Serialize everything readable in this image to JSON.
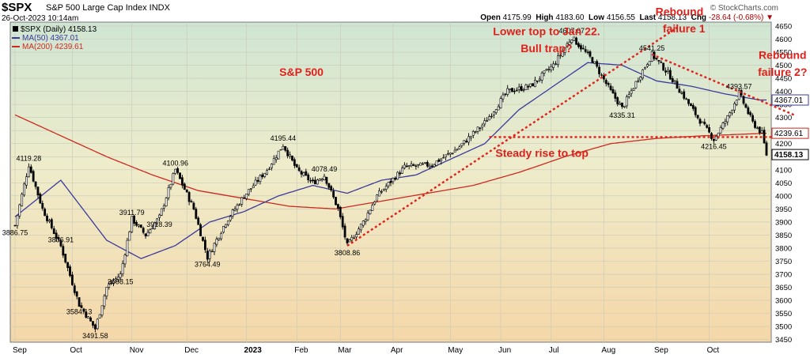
{
  "header": {
    "symbol": "$SPX",
    "description": "S&P 500 Large Cap Index  INDX",
    "date": "26-Oct-2023 10:14am",
    "brand": "© StockCharts.com",
    "open_label": "Open",
    "open": "4175.99",
    "high_label": "High",
    "high": "4183.60",
    "low_label": "Low",
    "low": "4156.55",
    "last_label": "Last",
    "last": "4158.13",
    "chg_label": "Chg",
    "chg": "-28.64 (-0.68%)"
  },
  "legend": {
    "price": "$SPX (Daily) 4158.13",
    "ma50": "MA(50) 4367.01",
    "ma200": "MA(200) 4239.61"
  },
  "chart_data": {
    "type": "candlestick",
    "title": "S&P 500",
    "ylim": [
      3440,
      4665
    ],
    "yticks": [
      3450,
      3500,
      3550,
      3600,
      3650,
      3700,
      3750,
      3800,
      3850,
      3900,
      3950,
      4000,
      4050,
      4100,
      4150,
      4200,
      4250,
      4300,
      4350,
      4400,
      4450,
      4500,
      4550,
      4600,
      4650
    ],
    "xticks": [
      "Sep",
      "Oct",
      "Nov",
      "Dec",
      "2023",
      "Feb",
      "Mar",
      "Apr",
      "May",
      "Jun",
      "Jul",
      "Aug",
      "Sep",
      "Oct"
    ],
    "price_anchors": [
      [
        0,
        3886.75
      ],
      [
        6,
        4119.28
      ],
      [
        12,
        3950
      ],
      [
        20,
        3806.91
      ],
      [
        28,
        3584.13
      ],
      [
        35,
        3491.58
      ],
      [
        40,
        3650
      ],
      [
        46,
        3698.15
      ],
      [
        51,
        3911.79
      ],
      [
        57,
        3850
      ],
      [
        63,
        3918.39
      ],
      [
        70,
        4100.96
      ],
      [
        78,
        3950
      ],
      [
        84,
        3764.49
      ],
      [
        92,
        3900
      ],
      [
        100,
        4000
      ],
      [
        110,
        4100
      ],
      [
        117,
        4195.44
      ],
      [
        123,
        4100
      ],
      [
        130,
        4050
      ],
      [
        135,
        4078.49
      ],
      [
        141,
        3950
      ],
      [
        145,
        3808.86
      ],
      [
        152,
        3900
      ],
      [
        158,
        4000
      ],
      [
        170,
        4110
      ],
      [
        182,
        4120
      ],
      [
        193,
        4180
      ],
      [
        205,
        4280
      ],
      [
        215,
        4400
      ],
      [
        225,
        4420
      ],
      [
        235,
        4500
      ],
      [
        243,
        4607.07
      ],
      [
        252,
        4520
      ],
      [
        260,
        4400
      ],
      [
        265,
        4335.31
      ],
      [
        272,
        4450
      ],
      [
        278,
        4541.25
      ],
      [
        285,
        4470
      ],
      [
        292,
        4380
      ],
      [
        298,
        4300
      ],
      [
        305,
        4216.45
      ],
      [
        311,
        4300
      ],
      [
        316,
        4393.57
      ],
      [
        322,
        4280
      ],
      [
        326,
        4239
      ],
      [
        328,
        4158.13
      ]
    ],
    "ma50_anchors": [
      [
        0,
        3920
      ],
      [
        20,
        4060
      ],
      [
        40,
        3830
      ],
      [
        55,
        3760
      ],
      [
        70,
        3810
      ],
      [
        85,
        3900
      ],
      [
        100,
        3940
      ],
      [
        115,
        4000
      ],
      [
        130,
        4040
      ],
      [
        145,
        4010
      ],
      [
        160,
        4060
      ],
      [
        175,
        4080
      ],
      [
        190,
        4140
      ],
      [
        205,
        4200
      ],
      [
        220,
        4330
      ],
      [
        235,
        4420
      ],
      [
        250,
        4510
      ],
      [
        265,
        4500
      ],
      [
        280,
        4440
      ],
      [
        295,
        4420
      ],
      [
        310,
        4390
      ],
      [
        325,
        4367.01
      ]
    ],
    "ma200_anchors": [
      [
        0,
        4310
      ],
      [
        20,
        4230
      ],
      [
        40,
        4150
      ],
      [
        60,
        4080
      ],
      [
        80,
        4020
      ],
      [
        100,
        3990
      ],
      [
        120,
        3960
      ],
      [
        140,
        3950
      ],
      [
        160,
        3980
      ],
      [
        180,
        4010
      ],
      [
        200,
        4040
      ],
      [
        220,
        4090
      ],
      [
        240,
        4150
      ],
      [
        260,
        4200
      ],
      [
        280,
        4220
      ],
      [
        300,
        4230
      ],
      [
        328,
        4239.61
      ]
    ],
    "value_labels": [
      {
        "text": "4119.28",
        "at": [
          6,
          4119.28
        ],
        "pos": "above"
      },
      {
        "text": "3886.75",
        "at": [
          0,
          3886.75
        ],
        "pos": "below"
      },
      {
        "text": "3806.91",
        "at": [
          20,
          3806.91
        ],
        "pos": "above"
      },
      {
        "text": "3584.13",
        "at": [
          28,
          3584.13
        ],
        "pos": "below"
      },
      {
        "text": "3491.58",
        "at": [
          35,
          3491.58
        ],
        "pos": "below"
      },
      {
        "text": "3911.79",
        "at": [
          51,
          3911.79
        ],
        "pos": "above"
      },
      {
        "text": "3698.15",
        "at": [
          46,
          3698.15
        ],
        "pos": "below"
      },
      {
        "text": "4100.96",
        "at": [
          70,
          4100.96
        ],
        "pos": "above"
      },
      {
        "text": "3918.39",
        "at": [
          63,
          3918.39
        ],
        "pos": "below"
      },
      {
        "text": "3764.49",
        "at": [
          84,
          3764.49
        ],
        "pos": "below"
      },
      {
        "text": "4195.44",
        "at": [
          117,
          4195.44
        ],
        "pos": "above"
      },
      {
        "text": "4078.49",
        "at": [
          135,
          4078.49
        ],
        "pos": "above"
      },
      {
        "text": "3808.86",
        "at": [
          145,
          3808.86
        ],
        "pos": "below"
      },
      {
        "text": "4607.07",
        "at": [
          243,
          4607.07
        ],
        "pos": "above"
      },
      {
        "text": "4541.25",
        "at": [
          278,
          4541.25
        ],
        "pos": "above"
      },
      {
        "text": "4335.31",
        "at": [
          265,
          4335.31
        ],
        "pos": "below"
      },
      {
        "text": "4393.57",
        "at": [
          316,
          4393.57
        ],
        "pos": "above"
      },
      {
        "text": "4216.45",
        "at": [
          305,
          4216.45
        ],
        "pos": "below"
      }
    ],
    "annotations": [
      {
        "text": "S&P 500",
        "at": [
          125,
          4460
        ]
      },
      {
        "text": "Lower top to Jan 22.",
        "at": [
          232,
          4615
        ]
      },
      {
        "text": "Bull trap?",
        "at": [
          232,
          4550
        ]
      },
      {
        "text": "Rebound",
        "at": [
          290,
          4690
        ]
      },
      {
        "text": "failure 1",
        "at": [
          292,
          4625
        ]
      },
      {
        "text": "Rebound",
        "at": [
          335,
          4525
        ]
      },
      {
        "text": "failure 2?",
        "at": [
          335,
          4460
        ]
      },
      {
        "text": "Steady rise to top",
        "at": [
          230,
          4150
        ]
      }
    ],
    "trendlines": [
      {
        "name": "rise",
        "from": [
          145,
          3808.86
        ],
        "to": [
          290,
          4650
        ]
      },
      {
        "name": "lower-top",
        "from": [
          278,
          4541.25
        ],
        "to": [
          340,
          4310
        ]
      },
      {
        "name": "support",
        "from": [
          207,
          4225
        ],
        "to": [
          335,
          4225
        ]
      }
    ],
    "price_tags": [
      {
        "text": "4367.01",
        "value": 4367.01,
        "kind": "ma50"
      },
      {
        "text": "4239.61",
        "value": 4239.61,
        "kind": "ma200"
      },
      {
        "text": "4158.13",
        "value": 4158.13,
        "kind": "last"
      }
    ],
    "colors": {
      "price": "#000000",
      "ma50": "#3a3a9c",
      "ma200": "#cc2a20",
      "annotation": "#e0201a",
      "bg_top": "#cfe5d3",
      "bg_bottom": "#f5d7a8"
    }
  }
}
